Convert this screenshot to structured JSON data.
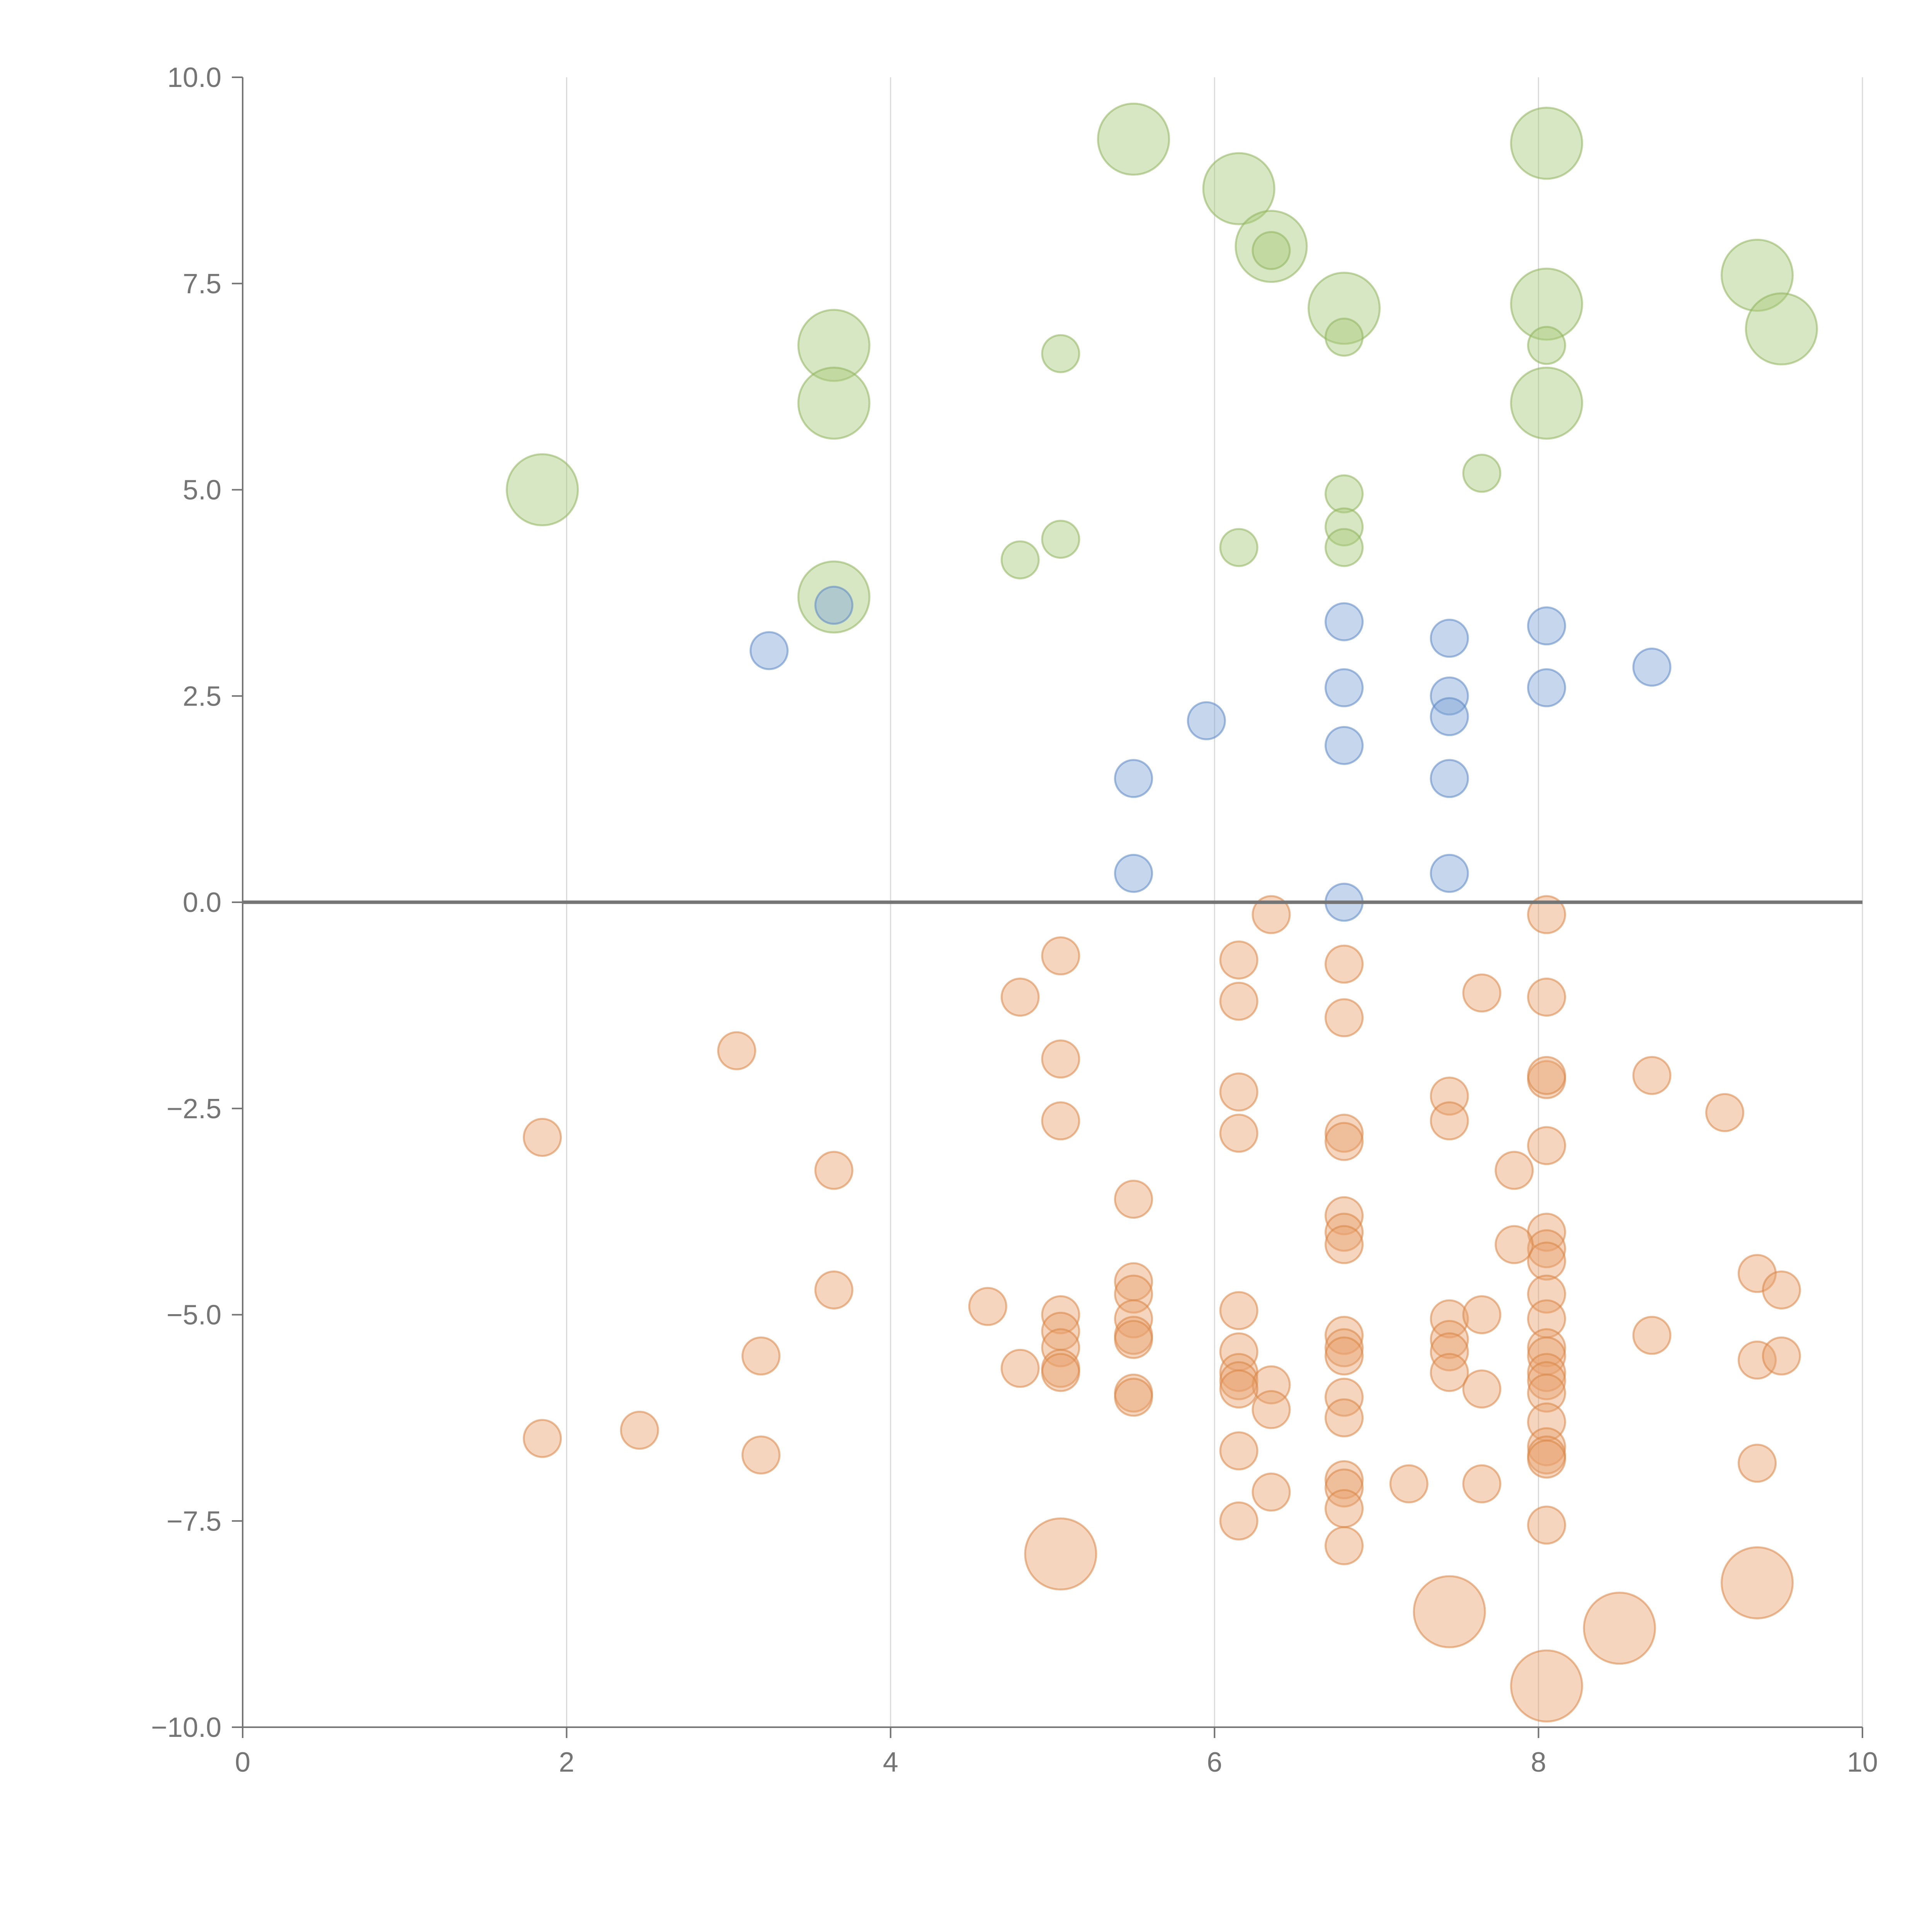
{
  "chart_data": {
    "type": "scatter",
    "title": "",
    "xlabel": "",
    "ylabel": "",
    "xlim": [
      0,
      10
    ],
    "ylim": [
      -10,
      10
    ],
    "x_ticks": [
      0,
      2,
      4,
      6,
      8,
      10
    ],
    "y_ticks": [
      10,
      7.5,
      5,
      2.5,
      0,
      -2.5,
      -5,
      -7.5,
      -10
    ],
    "x_tick_labels": [
      "0",
      "2",
      "4",
      "6",
      "8",
      "10"
    ],
    "y_tick_labels": [
      "10.0",
      "7.5",
      "5.0",
      "2.5",
      "0.0",
      "−2.5",
      "−5.0",
      "−7.5",
      "−10.0"
    ],
    "grid": "vertical",
    "zero_line": true,
    "size_scale": "small = 1, large = 2 (relative marker radius)",
    "colors": {
      "green_fill": "#a9c97a",
      "green_stroke": "#8fb35c",
      "blue_fill": "#7ea3d6",
      "blue_stroke": "#5b86c2",
      "orange_fill": "#e8a26f",
      "orange_stroke": "#d98545"
    },
    "series": [
      {
        "name": "green",
        "color": "#a9c97a",
        "stroke": "#8fb35c",
        "points": [
          {
            "x": 5.5,
            "y": 9.25,
            "s": 2
          },
          {
            "x": 6.15,
            "y": 8.65,
            "s": 2
          },
          {
            "x": 6.35,
            "y": 7.95,
            "s": 2
          },
          {
            "x": 6.35,
            "y": 7.9,
            "s": 1
          },
          {
            "x": 6.8,
            "y": 7.2,
            "s": 2
          },
          {
            "x": 6.8,
            "y": 6.85,
            "s": 1
          },
          {
            "x": 8.05,
            "y": 9.2,
            "s": 2
          },
          {
            "x": 8.05,
            "y": 7.25,
            "s": 2
          },
          {
            "x": 8.05,
            "y": 6.75,
            "s": 1
          },
          {
            "x": 8.05,
            "y": 6.05,
            "s": 2
          },
          {
            "x": 9.35,
            "y": 7.6,
            "s": 2
          },
          {
            "x": 9.5,
            "y": 6.95,
            "s": 2
          },
          {
            "x": 3.65,
            "y": 6.75,
            "s": 2
          },
          {
            "x": 3.65,
            "y": 6.05,
            "s": 2
          },
          {
            "x": 5.05,
            "y": 6.65,
            "s": 1
          },
          {
            "x": 1.85,
            "y": 5.0,
            "s": 2
          },
          {
            "x": 7.65,
            "y": 5.2,
            "s": 1
          },
          {
            "x": 6.8,
            "y": 4.95,
            "s": 1
          },
          {
            "x": 6.8,
            "y": 4.55,
            "s": 1
          },
          {
            "x": 6.8,
            "y": 4.3,
            "s": 1
          },
          {
            "x": 6.15,
            "y": 4.3,
            "s": 1
          },
          {
            "x": 5.05,
            "y": 4.4,
            "s": 1
          },
          {
            "x": 4.8,
            "y": 4.15,
            "s": 1
          },
          {
            "x": 3.65,
            "y": 3.7,
            "s": 2
          }
        ]
      },
      {
        "name": "blue",
        "color": "#7ea3d6",
        "stroke": "#5b86c2",
        "points": [
          {
            "x": 3.65,
            "y": 3.6,
            "s": 1
          },
          {
            "x": 3.25,
            "y": 3.05,
            "s": 1
          },
          {
            "x": 6.8,
            "y": 3.4,
            "s": 1
          },
          {
            "x": 7.45,
            "y": 3.2,
            "s": 1
          },
          {
            "x": 8.05,
            "y": 3.35,
            "s": 1
          },
          {
            "x": 8.7,
            "y": 2.85,
            "s": 1
          },
          {
            "x": 6.8,
            "y": 2.6,
            "s": 1
          },
          {
            "x": 7.45,
            "y": 2.5,
            "s": 1
          },
          {
            "x": 7.45,
            "y": 2.25,
            "s": 1
          },
          {
            "x": 8.05,
            "y": 2.6,
            "s": 1
          },
          {
            "x": 5.95,
            "y": 2.2,
            "s": 1
          },
          {
            "x": 6.8,
            "y": 1.9,
            "s": 1
          },
          {
            "x": 5.5,
            "y": 1.5,
            "s": 1
          },
          {
            "x": 7.45,
            "y": 1.5,
            "s": 1
          },
          {
            "x": 5.5,
            "y": 0.35,
            "s": 1
          },
          {
            "x": 7.45,
            "y": 0.35,
            "s": 1
          },
          {
            "x": 6.8,
            "y": 0.0,
            "s": 1
          }
        ]
      },
      {
        "name": "orange",
        "color": "#e8a26f",
        "stroke": "#d98545",
        "points": [
          {
            "x": 6.35,
            "y": -0.15,
            "s": 1
          },
          {
            "x": 8.05,
            "y": -0.15,
            "s": 1
          },
          {
            "x": 5.05,
            "y": -0.65,
            "s": 1
          },
          {
            "x": 6.15,
            "y": -0.7,
            "s": 1
          },
          {
            "x": 6.8,
            "y": -0.75,
            "s": 1
          },
          {
            "x": 4.8,
            "y": -1.15,
            "s": 1
          },
          {
            "x": 6.15,
            "y": -1.2,
            "s": 1
          },
          {
            "x": 7.65,
            "y": -1.1,
            "s": 1
          },
          {
            "x": 8.05,
            "y": -1.15,
            "s": 1
          },
          {
            "x": 6.8,
            "y": -1.4,
            "s": 1
          },
          {
            "x": 3.05,
            "y": -1.8,
            "s": 1
          },
          {
            "x": 5.05,
            "y": -1.9,
            "s": 1
          },
          {
            "x": 8.05,
            "y": -2.15,
            "s": 1
          },
          {
            "x": 8.05,
            "y": -2.1,
            "s": 1
          },
          {
            "x": 8.7,
            "y": -2.1,
            "s": 1
          },
          {
            "x": 9.15,
            "y": -2.55,
            "s": 1
          },
          {
            "x": 6.15,
            "y": -2.3,
            "s": 1
          },
          {
            "x": 7.45,
            "y": -2.35,
            "s": 1
          },
          {
            "x": 7.45,
            "y": -2.65,
            "s": 1
          },
          {
            "x": 5.05,
            "y": -2.65,
            "s": 1
          },
          {
            "x": 6.15,
            "y": -2.8,
            "s": 1
          },
          {
            "x": 6.8,
            "y": -2.8,
            "s": 1
          },
          {
            "x": 6.8,
            "y": -2.9,
            "s": 1
          },
          {
            "x": 8.05,
            "y": -2.95,
            "s": 1
          },
          {
            "x": 1.85,
            "y": -2.85,
            "s": 1
          },
          {
            "x": 3.65,
            "y": -3.25,
            "s": 1
          },
          {
            "x": 7.85,
            "y": -3.25,
            "s": 1
          },
          {
            "x": 5.5,
            "y": -3.6,
            "s": 1
          },
          {
            "x": 6.8,
            "y": -3.8,
            "s": 1
          },
          {
            "x": 6.8,
            "y": -4.0,
            "s": 1
          },
          {
            "x": 6.8,
            "y": -4.15,
            "s": 1
          },
          {
            "x": 8.05,
            "y": -4.0,
            "s": 1
          },
          {
            "x": 8.05,
            "y": -4.2,
            "s": 1
          },
          {
            "x": 8.05,
            "y": -4.35,
            "s": 1
          },
          {
            "x": 7.85,
            "y": -4.15,
            "s": 1
          },
          {
            "x": 9.35,
            "y": -4.5,
            "s": 1
          },
          {
            "x": 9.5,
            "y": -4.7,
            "s": 1
          },
          {
            "x": 5.5,
            "y": -4.6,
            "s": 1
          },
          {
            "x": 5.5,
            "y": -4.75,
            "s": 1
          },
          {
            "x": 3.65,
            "y": -4.7,
            "s": 1
          },
          {
            "x": 8.05,
            "y": -4.75,
            "s": 1
          },
          {
            "x": 4.6,
            "y": -4.9,
            "s": 1
          },
          {
            "x": 6.15,
            "y": -4.95,
            "s": 1
          },
          {
            "x": 5.05,
            "y": -5.0,
            "s": 1
          },
          {
            "x": 5.5,
            "y": -5.05,
            "s": 1
          },
          {
            "x": 7.45,
            "y": -5.05,
            "s": 1
          },
          {
            "x": 7.65,
            "y": -5.0,
            "s": 1
          },
          {
            "x": 8.05,
            "y": -5.05,
            "s": 1
          },
          {
            "x": 5.05,
            "y": -5.2,
            "s": 1
          },
          {
            "x": 5.5,
            "y": -5.25,
            "s": 1
          },
          {
            "x": 5.5,
            "y": -5.3,
            "s": 1
          },
          {
            "x": 6.8,
            "y": -5.25,
            "s": 1
          },
          {
            "x": 7.45,
            "y": -5.3,
            "s": 1
          },
          {
            "x": 8.7,
            "y": -5.25,
            "s": 1
          },
          {
            "x": 5.05,
            "y": -5.4,
            "s": 1
          },
          {
            "x": 6.15,
            "y": -5.45,
            "s": 1
          },
          {
            "x": 6.8,
            "y": -5.4,
            "s": 1
          },
          {
            "x": 6.8,
            "y": -5.5,
            "s": 1
          },
          {
            "x": 7.45,
            "y": -5.45,
            "s": 1
          },
          {
            "x": 8.05,
            "y": -5.4,
            "s": 1
          },
          {
            "x": 8.05,
            "y": -5.5,
            "s": 1
          },
          {
            "x": 3.2,
            "y": -5.5,
            "s": 1
          },
          {
            "x": 9.35,
            "y": -5.55,
            "s": 1
          },
          {
            "x": 9.5,
            "y": -5.5,
            "s": 1
          },
          {
            "x": 4.8,
            "y": -5.65,
            "s": 1
          },
          {
            "x": 5.05,
            "y": -5.65,
            "s": 1
          },
          {
            "x": 5.05,
            "y": -5.7,
            "s": 1
          },
          {
            "x": 6.15,
            "y": -5.7,
            "s": 1
          },
          {
            "x": 6.15,
            "y": -5.8,
            "s": 1
          },
          {
            "x": 7.45,
            "y": -5.7,
            "s": 1
          },
          {
            "x": 8.05,
            "y": -5.7,
            "s": 1
          },
          {
            "x": 8.05,
            "y": -5.8,
            "s": 1
          },
          {
            "x": 6.35,
            "y": -5.85,
            "s": 1
          },
          {
            "x": 6.15,
            "y": -5.9,
            "s": 1
          },
          {
            "x": 7.65,
            "y": -5.9,
            "s": 1
          },
          {
            "x": 8.05,
            "y": -5.95,
            "s": 1
          },
          {
            "x": 5.5,
            "y": -5.95,
            "s": 1
          },
          {
            "x": 5.5,
            "y": -6.0,
            "s": 1
          },
          {
            "x": 6.8,
            "y": -6.0,
            "s": 1
          },
          {
            "x": 6.35,
            "y": -6.15,
            "s": 1
          },
          {
            "x": 6.8,
            "y": -6.25,
            "s": 1
          },
          {
            "x": 8.05,
            "y": -6.3,
            "s": 1
          },
          {
            "x": 2.45,
            "y": -6.4,
            "s": 1
          },
          {
            "x": 1.85,
            "y": -6.5,
            "s": 1
          },
          {
            "x": 8.05,
            "y": -6.6,
            "s": 1
          },
          {
            "x": 6.15,
            "y": -6.65,
            "s": 1
          },
          {
            "x": 3.2,
            "y": -6.7,
            "s": 1
          },
          {
            "x": 8.05,
            "y": -6.7,
            "s": 1
          },
          {
            "x": 8.05,
            "y": -6.75,
            "s": 1
          },
          {
            "x": 9.35,
            "y": -6.8,
            "s": 1
          },
          {
            "x": 6.8,
            "y": -7.0,
            "s": 1
          },
          {
            "x": 7.2,
            "y": -7.05,
            "s": 1
          },
          {
            "x": 7.65,
            "y": -7.05,
            "s": 1
          },
          {
            "x": 6.8,
            "y": -7.1,
            "s": 1
          },
          {
            "x": 6.35,
            "y": -7.15,
            "s": 1
          },
          {
            "x": 6.8,
            "y": -7.35,
            "s": 1
          },
          {
            "x": 6.15,
            "y": -7.5,
            "s": 1
          },
          {
            "x": 8.05,
            "y": -7.55,
            "s": 1
          },
          {
            "x": 6.8,
            "y": -7.8,
            "s": 1
          },
          {
            "x": 5.05,
            "y": -7.9,
            "s": 2
          },
          {
            "x": 9.35,
            "y": -8.25,
            "s": 2
          },
          {
            "x": 7.45,
            "y": -8.6,
            "s": 2
          },
          {
            "x": 8.5,
            "y": -8.8,
            "s": 2
          },
          {
            "x": 8.05,
            "y": -9.5,
            "s": 2
          }
        ]
      }
    ]
  }
}
